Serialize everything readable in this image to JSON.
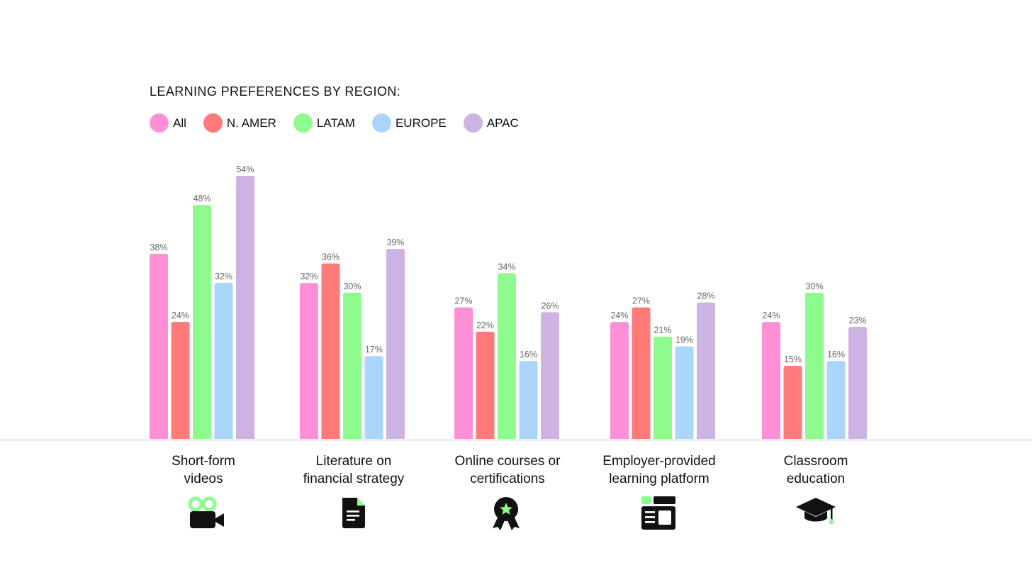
{
  "chart_data": {
    "type": "bar",
    "title": "LEARNING PREFERENCES BY REGION:",
    "categories": [
      "Short-form\nvideos",
      "Literature on\nfinancial strategy",
      "Online courses or\ncertifications",
      "Employer-provided\nlearning platform",
      "Classroom\neducation"
    ],
    "series": [
      {
        "name": "All",
        "color": "#ff8fd6",
        "values": [
          38,
          32,
          27,
          24,
          24
        ]
      },
      {
        "name": "N. AMER",
        "color": "#ff7a78",
        "values": [
          24,
          36,
          22,
          27,
          15
        ]
      },
      {
        "name": "LATAM",
        "color": "#8dfb8d",
        "values": [
          48,
          30,
          34,
          21,
          30
        ]
      },
      {
        "name": "EUROPE",
        "color": "#abd6fb",
        "values": [
          32,
          17,
          16,
          19,
          16
        ]
      },
      {
        "name": "APAC",
        "color": "#cdb2e4",
        "values": [
          54,
          39,
          26,
          28,
          23
        ]
      }
    ],
    "value_suffix": "%",
    "ylim": [
      0,
      54
    ],
    "grid": false,
    "legend_position": "top-left",
    "icons": [
      "video-camera-icon",
      "document-icon",
      "certificate-ribbon-icon",
      "learning-platform-icon",
      "graduation-cap-icon"
    ],
    "colors": {
      "label": "#666666",
      "baseline": "#eeeeee",
      "text": "#111111",
      "icon_accent": "#8dfb8d"
    }
  }
}
